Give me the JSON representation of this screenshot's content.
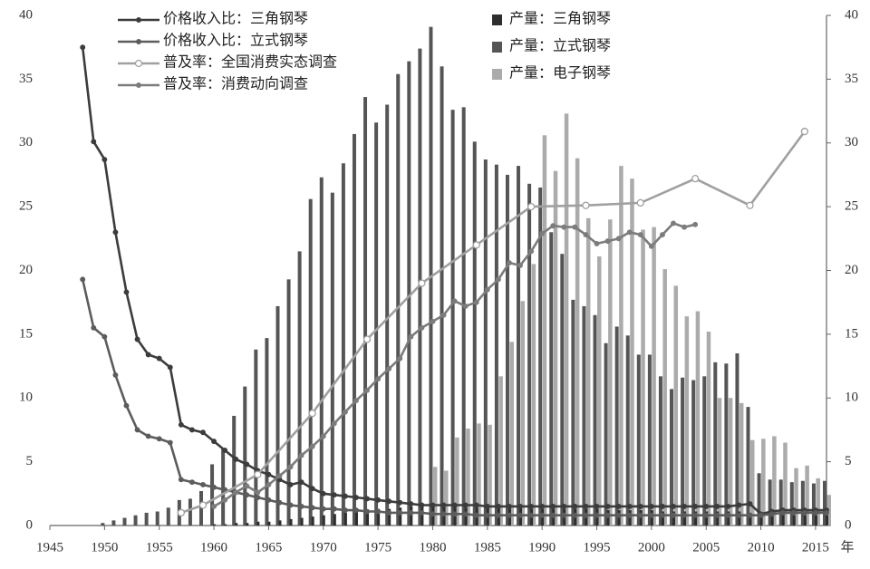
{
  "chart_data": {
    "type": "combo",
    "x": [
      1948,
      1949,
      1950,
      1951,
      1952,
      1953,
      1954,
      1955,
      1956,
      1957,
      1958,
      1959,
      1960,
      1961,
      1962,
      1963,
      1964,
      1965,
      1966,
      1967,
      1968,
      1969,
      1970,
      1971,
      1972,
      1973,
      1974,
      1975,
      1976,
      1977,
      1978,
      1979,
      1980,
      1981,
      1982,
      1983,
      1984,
      1985,
      1986,
      1987,
      1988,
      1989,
      1990,
      1991,
      1992,
      1993,
      1994,
      1995,
      1996,
      1997,
      1998,
      1999,
      2000,
      2001,
      2002,
      2003,
      2004,
      2005,
      2006,
      2007,
      2008,
      2009,
      2010,
      2011,
      2012,
      2013,
      2014,
      2015,
      2016
    ],
    "xlim": [
      1945,
      2016
    ],
    "xticks": [
      1945,
      1950,
      1955,
      1960,
      1965,
      1970,
      1975,
      1980,
      1985,
      1990,
      1995,
      2000,
      2005,
      2010,
      2015
    ],
    "x_unit": "年",
    "ylim": [
      0,
      40
    ],
    "yticks": [
      0,
      5,
      10,
      15,
      20,
      25,
      30,
      35,
      40
    ],
    "y2lim": [
      0,
      40
    ],
    "y2ticks": [
      0,
      5,
      10,
      15,
      20,
      25,
      30,
      35,
      40
    ],
    "series": [
      {
        "name": "价格收入比：三角钢琴",
        "type": "line",
        "color": "#3c3c3c",
        "marker": "filled",
        "values": [
          37.5,
          30.1,
          28.7,
          23.0,
          18.3,
          14.6,
          13.4,
          13.1,
          12.4,
          7.9,
          7.5,
          7.3,
          6.6,
          5.9,
          5.2,
          4.8,
          4.3,
          4.0,
          3.6,
          3.2,
          3.4,
          2.9,
          2.5,
          2.4,
          2.3,
          2.2,
          2.1,
          2.0,
          1.9,
          1.8,
          1.7,
          1.6,
          1.6,
          1.6,
          1.6,
          1.6,
          1.6,
          1.5,
          1.5,
          1.5,
          1.5,
          1.5,
          1.5,
          1.5,
          1.5,
          1.5,
          1.5,
          1.5,
          1.5,
          1.5,
          1.5,
          1.5,
          1.5,
          1.5,
          1.5,
          1.5,
          1.5,
          1.5,
          1.5,
          1.5,
          1.6,
          1.7,
          0.9,
          1.1,
          1.2,
          1.2,
          1.2,
          1.2,
          1.2
        ]
      },
      {
        "name": "价格收入比：立式钢琴",
        "type": "line",
        "color": "#5c5c5c",
        "marker": "filled",
        "values": [
          19.3,
          15.5,
          14.8,
          11.8,
          9.4,
          7.5,
          7.0,
          6.8,
          6.5,
          3.6,
          3.4,
          3.2,
          3.0,
          2.8,
          2.6,
          2.4,
          2.2,
          2.0,
          1.8,
          1.6,
          1.5,
          1.4,
          1.3,
          1.3,
          1.2,
          1.2,
          1.1,
          1.1,
          1.0,
          1.0,
          1.0,
          1.0,
          0.9,
          0.9,
          0.9,
          0.9,
          0.8,
          0.8,
          0.8,
          0.8,
          0.8,
          0.8,
          0.8,
          0.8,
          0.8,
          0.8,
          0.8,
          0.8,
          0.8,
          0.8,
          0.8,
          0.8,
          0.8,
          0.8,
          0.8,
          0.8,
          0.8,
          0.8,
          0.8,
          0.8,
          0.8,
          0.8,
          0.8,
          0.9,
          1.0,
          1.0,
          1.0,
          1.0,
          1.0
        ]
      },
      {
        "name": "普及率：全国消费实态调查",
        "type": "line",
        "color": "#a0a0a0",
        "marker": "open",
        "x": [
          1957,
          1959,
          1964,
          1969,
          1974,
          1979,
          1984,
          1989,
          1994,
          1999,
          2004,
          2009,
          2014
        ],
        "values": [
          1.0,
          1.6,
          4.0,
          8.8,
          14.6,
          19.0,
          22.0,
          25.0,
          25.1,
          25.3,
          27.2,
          25.1,
          30.9
        ]
      },
      {
        "name": "普及率：消费动向调查",
        "type": "line",
        "color": "#7c7c7c",
        "marker": "filled",
        "x": [
          1960,
          1961,
          1962,
          1963,
          1964,
          1965,
          1966,
          1967,
          1968,
          1969,
          1970,
          1971,
          1972,
          1973,
          1974,
          1975,
          1976,
          1977,
          1978,
          1979,
          1980,
          1981,
          1982,
          1983,
          1984,
          1985,
          1986,
          1987,
          1988,
          1989,
          1990,
          1991,
          1992,
          1993,
          1994,
          1995,
          1996,
          1997,
          1998,
          1999,
          2000,
          2001,
          2002,
          2003,
          2004
        ],
        "values": [
          1.5,
          2.0,
          2.6,
          3.1,
          2.6,
          3.2,
          3.9,
          4.6,
          5.5,
          6.2,
          7.0,
          8.0,
          8.9,
          9.8,
          10.6,
          11.5,
          12.3,
          13.1,
          14.8,
          15.5,
          16.0,
          16.5,
          17.6,
          17.2,
          17.5,
          18.5,
          19.3,
          20.6,
          20.4,
          21.5,
          22.9,
          23.5,
          23.4,
          23.4,
          22.8,
          22.1,
          22.3,
          22.5,
          23.0,
          22.8,
          21.9,
          22.8,
          23.7,
          23.4,
          23.6
        ]
      },
      {
        "name": "产量：三角钢琴",
        "type": "bar",
        "color": "#2e2e2e",
        "axis": "y2",
        "values": [
          0,
          0,
          0,
          0,
          0,
          0,
          0,
          0,
          0,
          0,
          0,
          0,
          0.1,
          0.1,
          0.2,
          0.2,
          0.3,
          0.3,
          0.4,
          0.5,
          0.6,
          0.7,
          0.8,
          0.9,
          1.0,
          1.1,
          1.2,
          1.3,
          1.3,
          1.4,
          1.5,
          1.5,
          1.6,
          1.5,
          1.5,
          1.4,
          1.4,
          1.4,
          1.4,
          1.4,
          1.4,
          1.3,
          1.3,
          1.3,
          1.3,
          1.3,
          1.3,
          1.3,
          1.2,
          1.2,
          1.2,
          1.2,
          1.2,
          1.1,
          1.1,
          1.1,
          1.1,
          1.1,
          1.1,
          1.1,
          1.1,
          1.0,
          0.9,
          0.9,
          0.9,
          0.8,
          0.8,
          0.8,
          0.8
        ]
      },
      {
        "name": "产量：立式钢琴",
        "type": "bar",
        "color": "#555555",
        "axis": "y2",
        "values": [
          0,
          0,
          0.2,
          0.4,
          0.6,
          0.8,
          1.0,
          1.1,
          1.4,
          2.0,
          2.1,
          2.7,
          4.8,
          6.0,
          8.6,
          10.9,
          13.8,
          14.7,
          17.2,
          19.3,
          21.5,
          25.6,
          27.3,
          26.1,
          28.4,
          30.7,
          33.6,
          31.6,
          33.0,
          35.4,
          36.4,
          37.4,
          39.1,
          36.0,
          32.6,
          32.8,
          30.1,
          28.7,
          28.3,
          27.5,
          28.2,
          26.8,
          26.5,
          23.0,
          21.3,
          17.7,
          17.2,
          16.5,
          14.3,
          15.6,
          14.9,
          13.4,
          13.4,
          11.7,
          10.7,
          11.6,
          11.4,
          11.7,
          12.8,
          12.7,
          13.5,
          9.3,
          4.1,
          3.6,
          3.6,
          3.4,
          3.5,
          3.3,
          3.5
        ]
      },
      {
        "name": "产量：电子钢琴",
        "type": "bar",
        "color": "#ababab",
        "axis": "y2",
        "values": [
          null,
          null,
          null,
          null,
          null,
          null,
          null,
          null,
          null,
          null,
          null,
          null,
          null,
          null,
          null,
          null,
          null,
          null,
          null,
          null,
          null,
          null,
          null,
          null,
          null,
          null,
          null,
          null,
          null,
          null,
          null,
          null,
          4.6,
          4.3,
          6.9,
          7.6,
          8.0,
          7.9,
          11.7,
          14.4,
          17.6,
          20.5,
          30.6,
          27.8,
          32.3,
          28.8,
          24.1,
          21.1,
          24.0,
          28.2,
          27.2,
          23.2,
          23.4,
          20.1,
          18.8,
          16.4,
          16.8,
          15.2,
          10.0,
          10.0,
          9.6,
          6.7,
          6.8,
          7.0,
          6.5,
          4.5,
          4.7,
          3.7,
          2.4
        ]
      }
    ]
  }
}
